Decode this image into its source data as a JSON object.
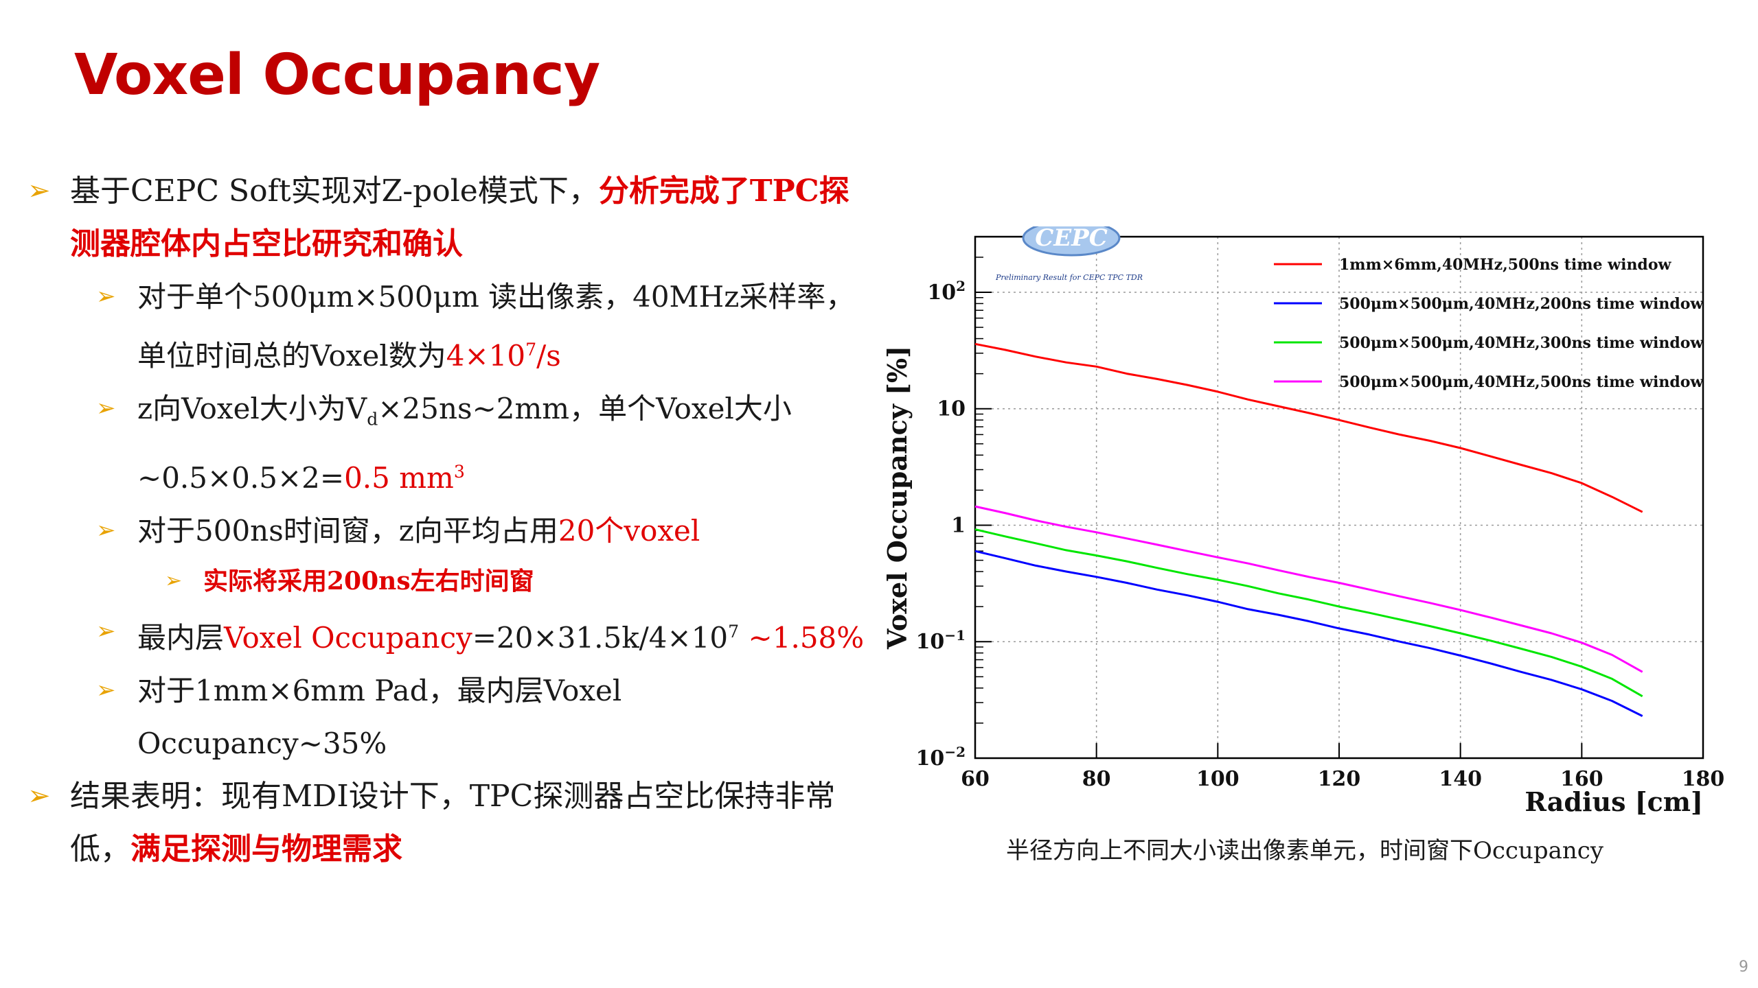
{
  "slide": {
    "title": "Voxel Occupancy",
    "page_number": "9",
    "caption": "半径方向上不同大小读出像素单元，时间窗下Occupancy"
  },
  "bullets": {
    "b1": {
      "pre": "基于CEPC Soft实现对Z-pole模式下，",
      "hl": "分析完成了TPC探测器腔体内占空比研究和确认"
    },
    "b2": {
      "pre": "对于单个500μm×500μm 读出像素，40MHz采样率，单位时间总的Voxel数为",
      "hl_base": "4×10",
      "hl_sup": "7",
      "hl_tail": "/s"
    },
    "b3": {
      "pre1": "z向Voxel大小为V",
      "sub": "d",
      "pre2": "×25ns~2mm，单个Voxel大小~0.5×0.5×2=",
      "hl_base": "0.5 mm",
      "hl_sup": "3"
    },
    "b4": {
      "pre": "对于500ns时间窗，z向平均占用",
      "hl": "20个voxel"
    },
    "b4a": {
      "text": "实际将采用200ns左右时间窗"
    },
    "b5": {
      "pre": "最内层",
      "hl1": "Voxel Occupancy",
      "mid": "=20×31.5k/4×10",
      "mid_sup": "7",
      "hl2": " ~1.58%"
    },
    "b6": {
      "text": "对于1mm×6mm Pad，最内层Voxel Occupancy~35%"
    },
    "b7": {
      "pre": "结果表明：现有MDI设计下，TPC探测器占空比保持非常低，",
      "hl": "满足探测与物理需求"
    }
  },
  "logo": {
    "text": "CEPC",
    "note": "Preliminary Result for CEPC TPC TDR"
  },
  "chart_data": {
    "type": "line",
    "xlabel": "Radius [cm]",
    "ylabel": "Voxel Occupancy [%]",
    "xlim": [
      60,
      180
    ],
    "ylim": [
      0.01,
      300
    ],
    "yscale": "log",
    "grid": true,
    "legend_position": "top-right",
    "x_ticks": [
      "60",
      "80",
      "100",
      "120",
      "140",
      "160",
      "180"
    ],
    "y_ticks": [
      {
        "value": 0.01,
        "base": "10",
        "exp": "−2"
      },
      {
        "value": 0.1,
        "base": "10",
        "exp": "−1"
      },
      {
        "value": 1,
        "base": "1",
        "exp": ""
      },
      {
        "value": 10,
        "base": "10",
        "exp": ""
      },
      {
        "value": 100,
        "base": "10",
        "exp": "2"
      }
    ],
    "x": [
      60,
      65,
      70,
      75,
      80,
      85,
      90,
      95,
      100,
      105,
      110,
      115,
      120,
      125,
      130,
      135,
      140,
      145,
      150,
      155,
      160,
      165,
      170
    ],
    "series": [
      {
        "name": "1mm×6mm,40MHz,500ns time window",
        "color": "#ff0000",
        "values": [
          36,
          32,
          28,
          25,
          23,
          20,
          18,
          16,
          14,
          12,
          10.5,
          9.2,
          8.0,
          6.9,
          6.0,
          5.3,
          4.6,
          3.9,
          3.3,
          2.8,
          2.3,
          1.75,
          1.3
        ]
      },
      {
        "name": "500μm×500μm,40MHz,200ns time window",
        "color": "#0000ff",
        "values": [
          0.6,
          0.52,
          0.45,
          0.4,
          0.36,
          0.32,
          0.28,
          0.25,
          0.22,
          0.19,
          0.17,
          0.15,
          0.13,
          0.115,
          0.1,
          0.088,
          0.076,
          0.065,
          0.055,
          0.047,
          0.039,
          0.031,
          0.023
        ]
      },
      {
        "name": "500μm×500μm,40MHz,300ns time window",
        "color": "#00e600",
        "values": [
          0.92,
          0.8,
          0.7,
          0.61,
          0.55,
          0.49,
          0.43,
          0.38,
          0.34,
          0.3,
          0.26,
          0.23,
          0.2,
          0.177,
          0.155,
          0.136,
          0.118,
          0.102,
          0.087,
          0.074,
          0.061,
          0.048,
          0.034
        ]
      },
      {
        "name": "500μm×500μm,40MHz,500ns time window",
        "color": "#ff00ff",
        "values": [
          1.45,
          1.27,
          1.1,
          0.97,
          0.87,
          0.77,
          0.68,
          0.6,
          0.53,
          0.47,
          0.41,
          0.36,
          0.32,
          0.28,
          0.245,
          0.215,
          0.187,
          0.161,
          0.138,
          0.118,
          0.098,
          0.077,
          0.055
        ]
      }
    ]
  }
}
